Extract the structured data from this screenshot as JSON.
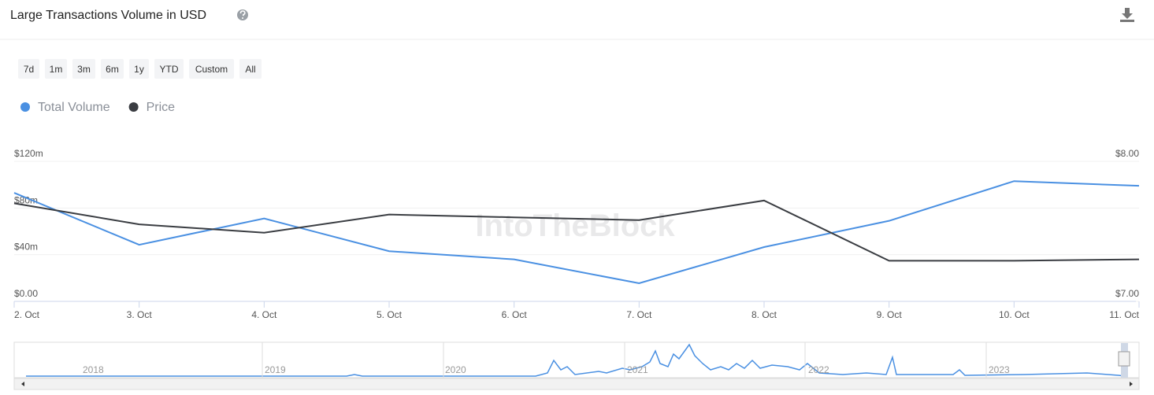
{
  "header": {
    "title": "Large Transactions Volume in USD"
  },
  "range_buttons": [
    "7d",
    "1m",
    "3m",
    "6m",
    "1y",
    "YTD",
    "Custom",
    "All"
  ],
  "watermark": "IntoTheBlock",
  "navigator": {
    "labels": [
      "2018",
      "2019",
      "2020",
      "2021",
      "2022",
      "2023"
    ]
  },
  "chart_data": {
    "type": "line",
    "categories": [
      "2. Oct",
      "3. Oct",
      "4. Oct",
      "5. Oct",
      "6. Oct",
      "7. Oct",
      "8. Oct",
      "9. Oct",
      "10. Oct",
      "11. Oct"
    ],
    "series": [
      {
        "name": "Total Volume",
        "color": "#4a90e2",
        "values": [
          93000000,
          48500000,
          71000000,
          43000000,
          36000000,
          15500000,
          46500000,
          69000000,
          103000000,
          99000000
        ]
      },
      {
        "name": "Price",
        "color": "#3a3d42",
        "axis": "y2",
        "values": [
          7.7,
          7.55,
          7.49,
          7.62,
          7.6,
          7.58,
          7.72,
          7.29,
          7.29,
          7.3
        ]
      }
    ],
    "ylim": [
      0,
      120000000
    ],
    "yticks": [
      {
        "value": 0,
        "label": "$0.00"
      },
      {
        "value": 40000000,
        "label": "$40m"
      },
      {
        "value": 80000000,
        "label": "$80m"
      },
      {
        "value": 120000000,
        "label": "$120m"
      }
    ],
    "y2lim": [
      7,
      8
    ],
    "y2ticks": [
      {
        "value": 7,
        "label": "$7.00"
      },
      {
        "value": 8,
        "label": "$8.00"
      }
    ],
    "grid": true
  }
}
